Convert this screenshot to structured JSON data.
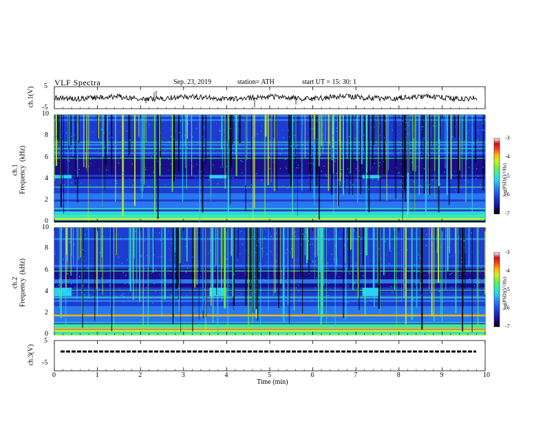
{
  "header": {
    "title": "VLF  Spectra",
    "date": "Sep. 23, 2019",
    "station": "station= ATH",
    "start": "start  UT  =    15: 30: 1"
  },
  "chart_data": [
    {
      "type": "line",
      "panel": "ch1-waveform",
      "ylabel": "ch.1(V)",
      "ylim": [
        -5,
        5
      ],
      "y_ticks": [
        "5",
        "-5"
      ],
      "xlim": [
        0,
        10
      ]
    },
    {
      "type": "heatmap",
      "panel": "ch1-spectrogram",
      "ylabel": "ch.1\nFrequency  (kHz)",
      "ylim": [
        0,
        10
      ],
      "y_ticks": [
        "0",
        "2",
        "4",
        "6",
        "8",
        "10"
      ],
      "xlim": [
        0,
        10
      ],
      "colorbar": {
        "label": "log(PSD)(V²/Hz)",
        "range": [
          -7,
          -3
        ],
        "ticks": [
          "-3",
          "-4",
          "-5",
          "-6",
          "-7"
        ]
      }
    },
    {
      "type": "heatmap",
      "panel": "ch2-spectrogram",
      "ylabel": "ch.2\nFrequency  (kHz)",
      "ylim": [
        0,
        10
      ],
      "y_ticks": [
        "0",
        "2",
        "4",
        "6",
        "8",
        "10"
      ],
      "xlim": [
        0,
        10
      ],
      "colorbar": {
        "label": "log(PSD)(V²/Hz)",
        "range": [
          -7,
          -3
        ],
        "ticks": [
          "-3",
          "-4",
          "-5",
          "-6",
          "-7"
        ]
      }
    },
    {
      "type": "line",
      "panel": "ch3-waveform",
      "ylabel": "ch.3(V)",
      "ylim": [
        -5,
        5
      ],
      "y_ticks": [
        "5",
        "-5"
      ],
      "xlim": [
        0,
        10
      ],
      "x_ticks": [
        "0",
        "1",
        "2",
        "3",
        "4",
        "5",
        "6",
        "7",
        "8",
        "9",
        "10"
      ],
      "xlabel": "Time  (min)"
    }
  ],
  "colors": {
    "palette": [
      "#000000",
      "#1a0f8c",
      "#1e3cd2",
      "#2878f0",
      "#28d2f0",
      "#3cf09a",
      "#78f03c",
      "#d2f028",
      "#ffb400",
      "#ff3c1e",
      "#c8141e",
      "#ffffff"
    ]
  }
}
